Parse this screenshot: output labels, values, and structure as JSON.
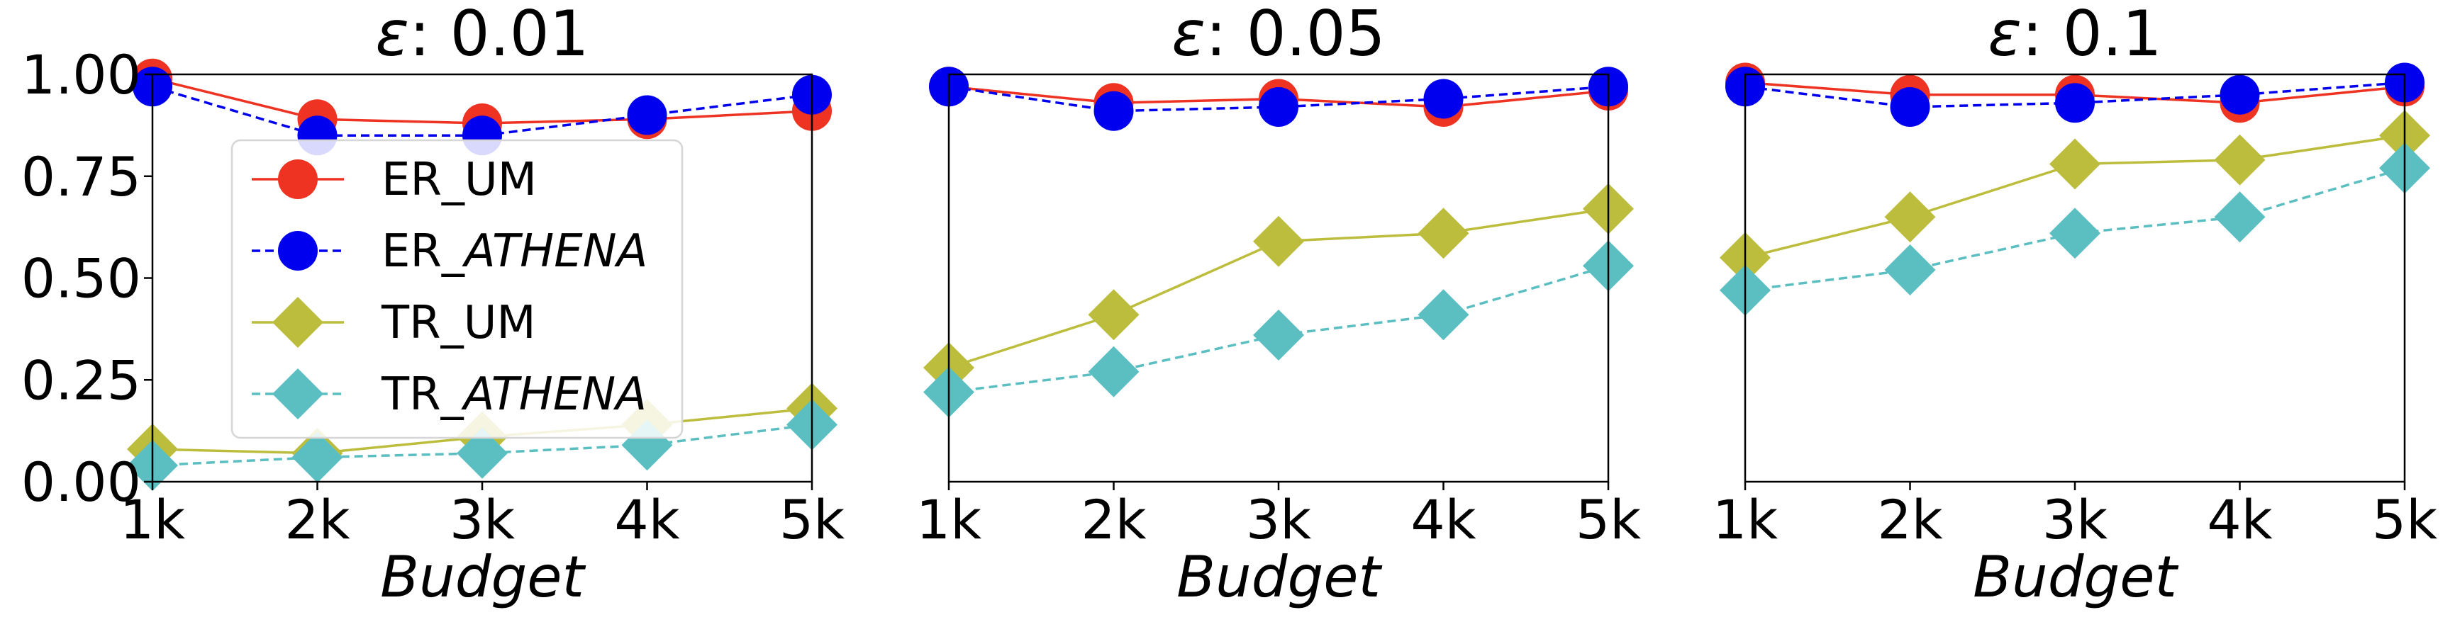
{
  "chart_data": [
    {
      "type": "line",
      "title_prefix": "ε",
      "title_value": ": 0.01",
      "xlabel": "Budget",
      "ylabel": "",
      "x": [
        "1k",
        "2k",
        "3k",
        "4k",
        "5k"
      ],
      "ylim": [
        0,
        1
      ],
      "yticks": [
        "0.00",
        "0.25",
        "0.50",
        "0.75",
        "1.00"
      ],
      "show_yticks": true,
      "legend": "left",
      "grid": false,
      "series": [
        {
          "name": "ER_UM",
          "name_base": "ER_",
          "name_rest": "UM",
          "name_italic": false,
          "color": "#ee3322",
          "marker": "circle",
          "dashed": false,
          "values": [
            0.99,
            0.89,
            0.88,
            0.89,
            0.91
          ]
        },
        {
          "name": "ER_ATHENA",
          "name_base": "ER_",
          "name_rest": "ATHENA",
          "name_italic": true,
          "color": "#0000ee",
          "marker": "circle",
          "dashed": true,
          "values": [
            0.97,
            0.85,
            0.85,
            0.9,
            0.95
          ]
        },
        {
          "name": "TR_UM",
          "name_base": "TR_",
          "name_rest": "UM",
          "name_italic": false,
          "color": "#bcbd3c",
          "marker": "diamond",
          "dashed": false,
          "values": [
            0.08,
            0.07,
            0.11,
            0.14,
            0.18
          ]
        },
        {
          "name": "TR_ATHENA",
          "name_base": "TR_",
          "name_rest": "ATHENA",
          "name_italic": true,
          "color": "#5bbfc2",
          "marker": "diamond",
          "dashed": true,
          "values": [
            0.04,
            0.06,
            0.07,
            0.09,
            0.14
          ]
        }
      ]
    },
    {
      "type": "line",
      "title_prefix": "ε",
      "title_value": ": 0.05",
      "xlabel": "Budget",
      "ylabel": "",
      "x": [
        "1k",
        "2k",
        "3k",
        "4k",
        "5k"
      ],
      "ylim": [
        0,
        1
      ],
      "show_yticks": false,
      "grid": false,
      "series": [
        {
          "name": "ER_UM",
          "color": "#ee3322",
          "marker": "circle",
          "dashed": false,
          "values": [
            0.97,
            0.93,
            0.94,
            0.92,
            0.96
          ]
        },
        {
          "name": "ER_ATHENA",
          "color": "#0000ee",
          "marker": "circle",
          "dashed": true,
          "values": [
            0.97,
            0.91,
            0.92,
            0.94,
            0.97
          ]
        },
        {
          "name": "TR_UM",
          "color": "#bcbd3c",
          "marker": "diamond",
          "dashed": false,
          "values": [
            0.28,
            0.41,
            0.59,
            0.61,
            0.67
          ]
        },
        {
          "name": "TR_ATHENA",
          "color": "#5bbfc2",
          "marker": "diamond",
          "dashed": true,
          "values": [
            0.22,
            0.27,
            0.36,
            0.41,
            0.53
          ]
        }
      ]
    },
    {
      "type": "line",
      "title_prefix": "ε",
      "title_value": ": 0.1",
      "xlabel": "Budget",
      "ylabel": "",
      "x": [
        "1k",
        "2k",
        "3k",
        "4k",
        "5k"
      ],
      "ylim": [
        0,
        1
      ],
      "show_yticks": false,
      "grid": false,
      "series": [
        {
          "name": "ER_UM",
          "color": "#ee3322",
          "marker": "circle",
          "dashed": false,
          "values": [
            0.98,
            0.95,
            0.95,
            0.93,
            0.97
          ]
        },
        {
          "name": "ER_ATHENA",
          "color": "#0000ee",
          "marker": "circle",
          "dashed": true,
          "values": [
            0.97,
            0.92,
            0.93,
            0.95,
            0.98
          ]
        },
        {
          "name": "TR_UM",
          "color": "#bcbd3c",
          "marker": "diamond",
          "dashed": false,
          "values": [
            0.55,
            0.65,
            0.78,
            0.79,
            0.85
          ]
        },
        {
          "name": "TR_ATHENA",
          "color": "#5bbfc2",
          "marker": "diamond",
          "dashed": true,
          "values": [
            0.47,
            0.52,
            0.61,
            0.65,
            0.77
          ]
        }
      ]
    }
  ]
}
